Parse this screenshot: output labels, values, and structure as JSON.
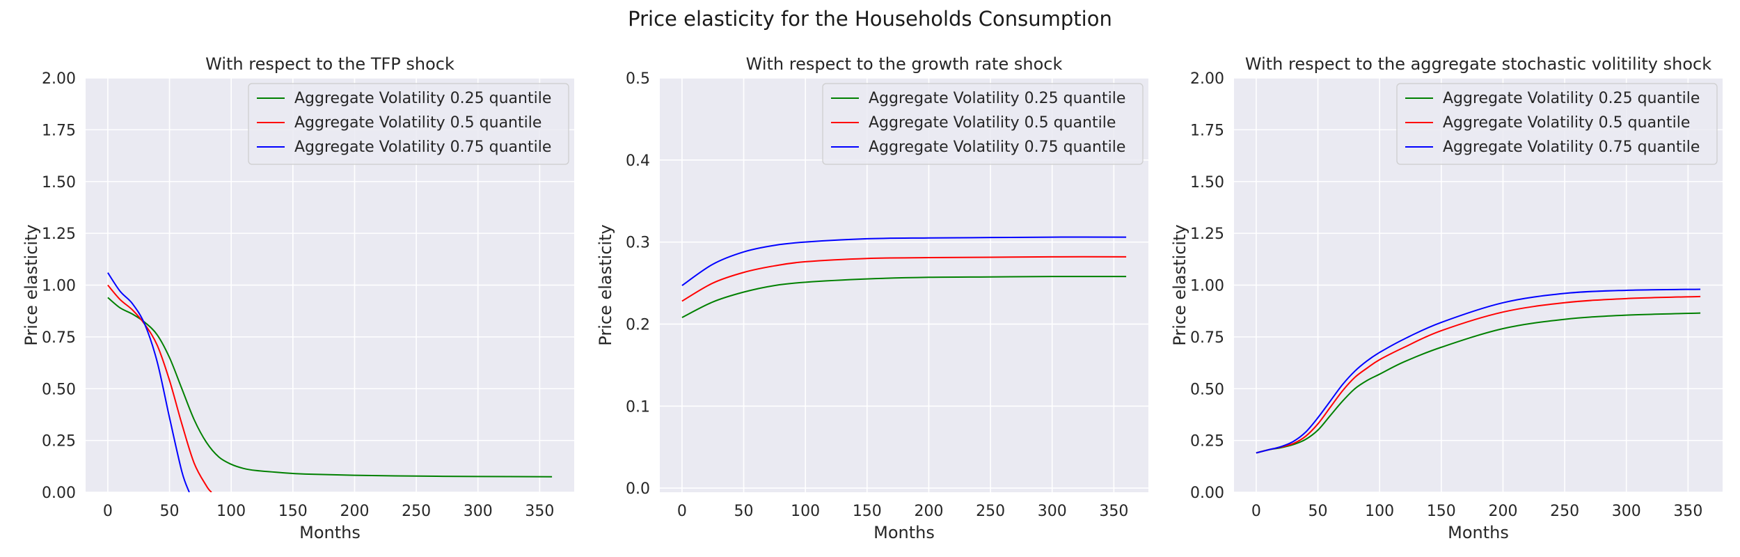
{
  "figure_title": "Price elasticity for the Households Consumption",
  "style": {
    "axes_bg": "#eaeaf2",
    "grid": "#ffffff",
    "text": "#262626"
  },
  "chart_data": [
    {
      "type": "line",
      "title": "With respect to the TFP shock",
      "xlabel": "Months",
      "ylabel": "Price elasticity",
      "xlim": [
        -18,
        378
      ],
      "ylim": [
        0,
        2
      ],
      "xticks": [
        0,
        50,
        100,
        150,
        200,
        250,
        300,
        350
      ],
      "yticks": [
        0,
        0.25,
        0.5,
        0.75,
        1.0,
        1.25,
        1.5,
        1.75,
        2.0
      ],
      "ytick_labels": [
        "0.00",
        "0.25",
        "0.50",
        "0.75",
        "1.00",
        "1.25",
        "1.50",
        "1.75",
        "2.00"
      ],
      "grid": true,
      "legend": "top-right",
      "series": [
        {
          "name": "Aggregate Volatility 0.25 quantile",
          "color": "#008000",
          "x": [
            0,
            10,
            20,
            30,
            40,
            50,
            60,
            70,
            80,
            90,
            100,
            110,
            120,
            140,
            160,
            200,
            250,
            300,
            360
          ],
          "y": [
            0.94,
            0.89,
            0.86,
            0.82,
            0.76,
            0.65,
            0.5,
            0.35,
            0.24,
            0.17,
            0.135,
            0.115,
            0.105,
            0.095,
            0.088,
            0.082,
            0.078,
            0.076,
            0.075
          ]
        },
        {
          "name": "Aggregate Volatility 0.5 quantile",
          "color": "#ff0000",
          "x": [
            0,
            10,
            20,
            30,
            40,
            50,
            60,
            70,
            80,
            84
          ],
          "y": [
            1.0,
            0.93,
            0.88,
            0.81,
            0.71,
            0.54,
            0.33,
            0.14,
            0.03,
            0.0
          ]
        },
        {
          "name": "Aggregate Volatility 0.75 quantile",
          "color": "#0000ff",
          "x": [
            0,
            10,
            20,
            30,
            40,
            50,
            60,
            66
          ],
          "y": [
            1.06,
            0.97,
            0.91,
            0.81,
            0.63,
            0.36,
            0.1,
            0.0
          ]
        }
      ]
    },
    {
      "type": "line",
      "title": "With respect to the growth rate shock",
      "xlabel": "Months",
      "ylabel": "Price elasticity",
      "xlim": [
        -18,
        378
      ],
      "ylim": [
        -0.005,
        0.5
      ],
      "xticks": [
        0,
        50,
        100,
        150,
        200,
        250,
        300,
        350
      ],
      "yticks": [
        0,
        0.1,
        0.2,
        0.3,
        0.4,
        0.5
      ],
      "ytick_labels": [
        "0.0",
        "0.1",
        "0.2",
        "0.3",
        "0.4",
        "0.5"
      ],
      "grid": true,
      "legend": "top-right",
      "series": [
        {
          "name": "Aggregate Volatility 0.25 quantile",
          "color": "#008000",
          "x": [
            0,
            25,
            50,
            75,
            100,
            150,
            200,
            250,
            300,
            360
          ],
          "y": [
            0.208,
            0.227,
            0.239,
            0.247,
            0.251,
            0.255,
            0.257,
            0.2575,
            0.258,
            0.258
          ]
        },
        {
          "name": "Aggregate Volatility 0.5 quantile",
          "color": "#ff0000",
          "x": [
            0,
            25,
            50,
            75,
            100,
            150,
            200,
            250,
            300,
            360
          ],
          "y": [
            0.228,
            0.25,
            0.263,
            0.271,
            0.276,
            0.28,
            0.281,
            0.2815,
            0.282,
            0.282
          ]
        },
        {
          "name": "Aggregate Volatility 0.75 quantile",
          "color": "#0000ff",
          "x": [
            0,
            25,
            50,
            75,
            100,
            150,
            200,
            250,
            300,
            360
          ],
          "y": [
            0.247,
            0.273,
            0.288,
            0.296,
            0.3,
            0.304,
            0.305,
            0.3055,
            0.306,
            0.306
          ]
        }
      ]
    },
    {
      "type": "line",
      "title": "With respect to the aggregate stochastic volitility shock",
      "xlabel": "Months",
      "ylabel": "Price elasticity",
      "xlim": [
        -18,
        378
      ],
      "ylim": [
        0,
        2
      ],
      "xticks": [
        0,
        50,
        100,
        150,
        200,
        250,
        300,
        350
      ],
      "yticks": [
        0,
        0.25,
        0.5,
        0.75,
        1.0,
        1.25,
        1.5,
        1.75,
        2.0
      ],
      "ytick_labels": [
        "0.00",
        "0.25",
        "0.50",
        "0.75",
        "1.00",
        "1.25",
        "1.50",
        "1.75",
        "2.00"
      ],
      "grid": true,
      "legend": "top-right",
      "series": [
        {
          "name": "Aggregate Volatility 0.25 quantile",
          "color": "#008000",
          "x": [
            0,
            10,
            20,
            30,
            40,
            50,
            60,
            70,
            80,
            90,
            100,
            120,
            150,
            200,
            250,
            300,
            360
          ],
          "y": [
            0.19,
            0.205,
            0.215,
            0.23,
            0.255,
            0.3,
            0.37,
            0.44,
            0.5,
            0.54,
            0.57,
            0.63,
            0.7,
            0.79,
            0.835,
            0.855,
            0.865
          ]
        },
        {
          "name": "Aggregate Volatility 0.5 quantile",
          "color": "#ff0000",
          "x": [
            0,
            10,
            20,
            30,
            40,
            50,
            60,
            70,
            80,
            90,
            100,
            120,
            150,
            200,
            250,
            300,
            360
          ],
          "y": [
            0.19,
            0.205,
            0.218,
            0.235,
            0.27,
            0.33,
            0.41,
            0.49,
            0.555,
            0.6,
            0.64,
            0.7,
            0.78,
            0.87,
            0.915,
            0.935,
            0.945
          ]
        },
        {
          "name": "Aggregate Volatility 0.75 quantile",
          "color": "#0000ff",
          "x": [
            0,
            10,
            20,
            30,
            40,
            50,
            60,
            70,
            80,
            90,
            100,
            120,
            150,
            200,
            250,
            300,
            360
          ],
          "y": [
            0.19,
            0.205,
            0.22,
            0.245,
            0.29,
            0.36,
            0.44,
            0.52,
            0.585,
            0.635,
            0.675,
            0.74,
            0.82,
            0.915,
            0.96,
            0.975,
            0.98
          ]
        }
      ]
    }
  ]
}
